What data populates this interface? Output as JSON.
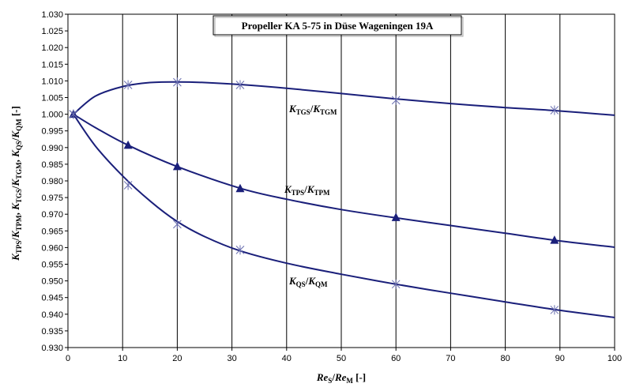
{
  "chart_data": {
    "type": "line",
    "title": "Propeller KA 5-75 in Düse Wageningen 19A",
    "xlabel": {
      "p1": "Re",
      "s1": "S",
      "sep": "/",
      "p2": "Re",
      "s2": "M",
      "unit": " [-]"
    },
    "ylabel": {
      "parts": [
        {
          "t": "K",
          "s": "TPS"
        },
        {
          "t": "/"
        },
        {
          "t": "K",
          "s": "TPM"
        },
        {
          "t": ", "
        },
        {
          "t": "K",
          "s": "TGS"
        },
        {
          "t": "/"
        },
        {
          "t": "K",
          "s": "TGM"
        },
        {
          "t": ", "
        },
        {
          "t": "K",
          "s": "QS"
        },
        {
          "t": "/"
        },
        {
          "t": "K",
          "s": "QM"
        },
        {
          "t": " [-]"
        }
      ]
    },
    "xlim": [
      0,
      100
    ],
    "ylim": [
      0.93,
      1.03
    ],
    "x_ticks": [
      "0",
      "10",
      "20",
      "30",
      "40",
      "50",
      "60",
      "70",
      "80",
      "90",
      "100"
    ],
    "y_ticks": [
      "0.930",
      "0.935",
      "0.940",
      "0.945",
      "0.950",
      "0.955",
      "0.960",
      "0.965",
      "0.970",
      "0.975",
      "0.980",
      "0.985",
      "0.990",
      "0.995",
      "1.000",
      "1.005",
      "1.010",
      "1.015",
      "1.020",
      "1.025",
      "1.030"
    ],
    "grid": {
      "x": true,
      "y": false
    },
    "series": [
      {
        "name": "KTGS/KTGM",
        "label": {
          "t1": "K",
          "s1": "TGS",
          "sep": "/",
          "t2": "K",
          "s2": "TGM"
        },
        "marker": "star",
        "points": [
          [
            1,
            1.0
          ],
          [
            11,
            1.0088
          ],
          [
            20,
            1.0096
          ],
          [
            31.5,
            1.0088
          ],
          [
            60,
            1.0042
          ],
          [
            89,
            1.0012
          ]
        ],
        "curve": [
          [
            1,
            1.0
          ],
          [
            5,
            1.0054
          ],
          [
            10,
            1.0083
          ],
          [
            15,
            1.0095
          ],
          [
            20,
            1.0097
          ],
          [
            25,
            1.0095
          ],
          [
            31.5,
            1.0089
          ],
          [
            40,
            1.0078
          ],
          [
            50,
            1.0062
          ],
          [
            60,
            1.0046
          ],
          [
            70,
            1.0032
          ],
          [
            80,
            1.002
          ],
          [
            89,
            1.0011
          ],
          [
            100,
            0.9997
          ]
        ]
      },
      {
        "name": "KTPS/KTPM",
        "label": {
          "t1": "K",
          "s1": "TPS",
          "sep": "/",
          "t2": "K",
          "s2": "TPM"
        },
        "marker": "triangle",
        "points": [
          [
            1,
            1.0
          ],
          [
            11,
            0.9907
          ],
          [
            20,
            0.9843
          ],
          [
            31.5,
            0.9777
          ],
          [
            60,
            0.969
          ],
          [
            89,
            0.9622
          ]
        ],
        "curve": [
          [
            1,
            1.0
          ],
          [
            5,
            0.996
          ],
          [
            11,
            0.9907
          ],
          [
            20,
            0.9843
          ],
          [
            31.5,
            0.9778
          ],
          [
            40,
            0.9745
          ],
          [
            50,
            0.9714
          ],
          [
            60,
            0.9689
          ],
          [
            70,
            0.9666
          ],
          [
            80,
            0.9643
          ],
          [
            89,
            0.9622
          ],
          [
            100,
            0.9601
          ]
        ]
      },
      {
        "name": "KQS/KQM",
        "label": {
          "t1": "K",
          "s1": "QS",
          "sep": "/",
          "t2": "K",
          "s2": "QM"
        },
        "marker": "star",
        "points": [
          [
            1,
            1.0
          ],
          [
            11,
            0.9787
          ],
          [
            20,
            0.967
          ],
          [
            31.5,
            0.9593
          ],
          [
            60,
            0.949
          ],
          [
            89,
            0.9413
          ]
        ],
        "curve": [
          [
            1,
            1.0
          ],
          [
            5,
            0.9905
          ],
          [
            10,
            0.9815
          ],
          [
            15,
            0.974
          ],
          [
            20,
            0.9678
          ],
          [
            25,
            0.9633
          ],
          [
            31.5,
            0.959
          ],
          [
            40,
            0.9553
          ],
          [
            50,
            0.952
          ],
          [
            60,
            0.949
          ],
          [
            70,
            0.9463
          ],
          [
            80,
            0.9437
          ],
          [
            89,
            0.9414
          ],
          [
            100,
            0.939
          ]
        ]
      }
    ],
    "line_color": "#1a1f7a",
    "marker_color": "#1a1f7a"
  }
}
